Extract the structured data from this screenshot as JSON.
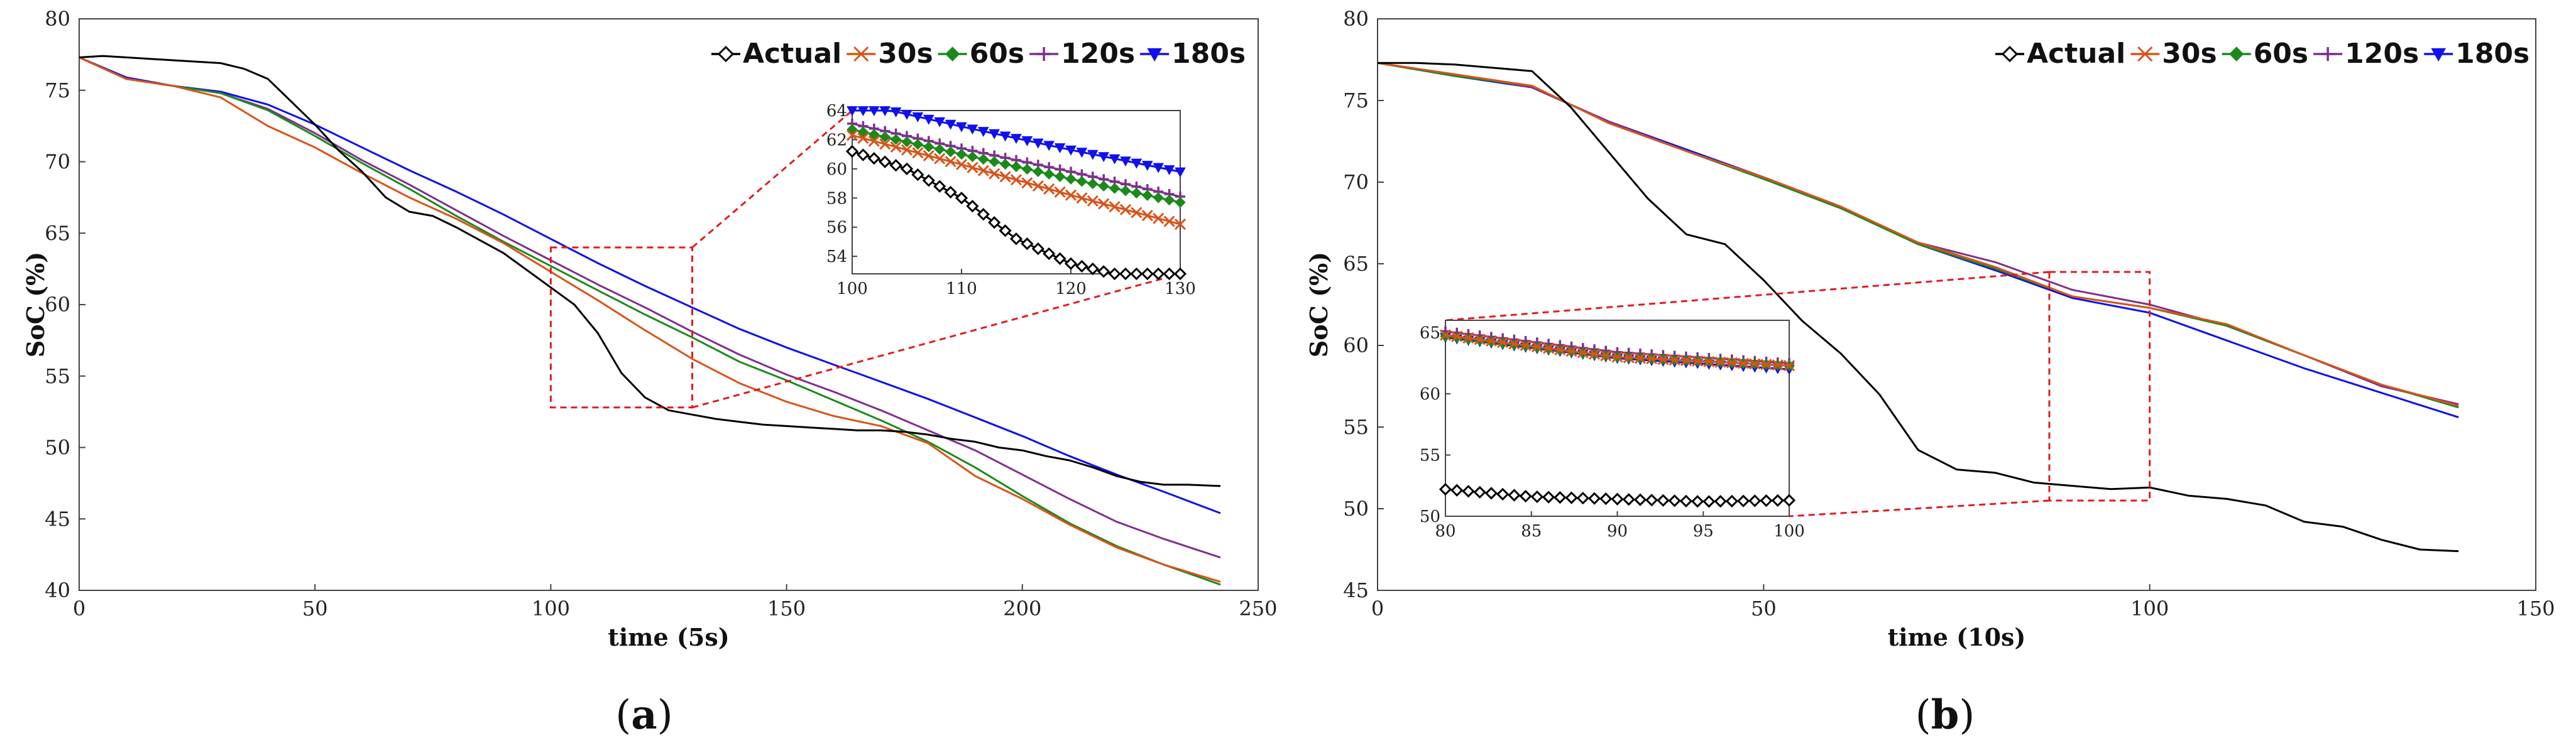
{
  "colors": {
    "Actual": "#000000",
    "30s": "#d95319",
    "60s": "#1a8a1a",
    "120s": "#7e2f8e",
    "180s": "#1010ee",
    "zoom_box": "#e31a1c"
  },
  "chart_data": [
    {
      "type": "line",
      "panel_label": "a",
      "xlabel": "time (5s)",
      "ylabel": "SoC (%)",
      "xlim": [
        0,
        250
      ],
      "ylim": [
        40,
        80
      ],
      "xticks": [
        0,
        50,
        100,
        150,
        200,
        250
      ],
      "yticks": [
        40,
        45,
        50,
        55,
        60,
        65,
        70,
        75,
        80
      ],
      "legend": [
        "Actual",
        "30s",
        "60s",
        "120s",
        "180s"
      ],
      "series": [
        {
          "name": "Actual",
          "x": [
            0,
            5,
            10,
            15,
            20,
            25,
            30,
            35,
            40,
            45,
            50,
            55,
            60,
            65,
            70,
            75,
            80,
            85,
            90,
            95,
            100,
            105,
            110,
            115,
            120,
            125,
            130,
            135,
            140,
            145,
            150,
            155,
            160,
            165,
            170,
            175,
            180,
            185,
            190,
            195,
            200,
            205,
            210,
            215,
            220,
            225,
            230,
            235,
            242
          ],
          "y": [
            77.3,
            77.4,
            77.3,
            77.2,
            77.1,
            77.0,
            76.9,
            76.5,
            75.8,
            74.2,
            72.6,
            70.8,
            69.3,
            67.5,
            66.5,
            66.2,
            65.4,
            64.5,
            63.6,
            62.4,
            61.2,
            60.0,
            58.0,
            55.2,
            53.5,
            52.6,
            52.3,
            52.0,
            51.8,
            51.6,
            51.5,
            51.4,
            51.3,
            51.2,
            51.2,
            51.1,
            50.9,
            50.6,
            50.4,
            50.0,
            49.8,
            49.4,
            49.1,
            48.6,
            48.0,
            47.6,
            47.4,
            47.4,
            47.3
          ]
        },
        {
          "name": "30s",
          "x": [
            0,
            10,
            20,
            30,
            40,
            50,
            60,
            70,
            80,
            90,
            100,
            110,
            120,
            130,
            140,
            150,
            160,
            170,
            180,
            190,
            200,
            210,
            220,
            230,
            242
          ],
          "y": [
            77.3,
            75.8,
            75.3,
            74.5,
            72.5,
            71.0,
            69.2,
            67.5,
            66.0,
            64.3,
            62.3,
            60.3,
            58.2,
            56.2,
            54.5,
            53.2,
            52.2,
            51.5,
            50.3,
            48.0,
            46.4,
            44.6,
            43.0,
            41.8,
            40.6
          ]
        },
        {
          "name": "60s",
          "x": [
            0,
            10,
            20,
            30,
            40,
            50,
            60,
            70,
            80,
            90,
            100,
            110,
            120,
            130,
            140,
            150,
            160,
            170,
            180,
            190,
            200,
            210,
            220,
            230,
            242
          ],
          "y": [
            77.3,
            75.8,
            75.3,
            74.8,
            73.6,
            71.8,
            69.9,
            68.1,
            66.2,
            64.4,
            62.7,
            61.0,
            59.3,
            57.7,
            56.0,
            54.7,
            53.3,
            51.9,
            50.4,
            48.6,
            46.6,
            44.7,
            43.1,
            41.8,
            40.4
          ]
        },
        {
          "name": "120s",
          "x": [
            0,
            10,
            20,
            30,
            40,
            50,
            60,
            70,
            80,
            90,
            100,
            110,
            120,
            130,
            140,
            150,
            160,
            170,
            180,
            190,
            200,
            210,
            220,
            230,
            242
          ],
          "y": [
            77.3,
            75.8,
            75.3,
            74.8,
            73.7,
            72.0,
            70.1,
            68.4,
            66.6,
            64.8,
            63.1,
            61.4,
            59.8,
            58.1,
            56.5,
            55.1,
            53.9,
            52.6,
            51.2,
            49.8,
            48.1,
            46.4,
            44.8,
            43.6,
            42.3
          ]
        },
        {
          "name": "180s",
          "x": [
            0,
            10,
            20,
            30,
            40,
            50,
            60,
            70,
            80,
            90,
            100,
            110,
            120,
            130,
            140,
            150,
            160,
            170,
            180,
            190,
            200,
            210,
            220,
            230,
            242
          ],
          "y": [
            77.3,
            75.9,
            75.3,
            74.9,
            74.0,
            72.6,
            71.0,
            69.4,
            67.9,
            66.3,
            64.6,
            62.9,
            61.3,
            59.8,
            58.3,
            57.0,
            55.8,
            54.6,
            53.4,
            52.1,
            50.8,
            49.4,
            48.1,
            46.9,
            45.4
          ]
        }
      ],
      "zoom": {
        "xlim": [
          100,
          130
        ],
        "ylim": [
          52.8,
          64
        ],
        "inset_xticks": [
          100,
          110,
          120,
          130
        ],
        "inset_yticks": [
          54,
          56,
          58,
          60,
          62,
          64
        ]
      }
    },
    {
      "type": "line",
      "panel_label": "b",
      "xlabel": "time (10s)",
      "ylabel": "SoC (%)",
      "xlim": [
        0,
        150
      ],
      "ylim": [
        45,
        80
      ],
      "xticks": [
        0,
        50,
        100,
        150
      ],
      "yticks": [
        45,
        50,
        55,
        60,
        65,
        70,
        75,
        80
      ],
      "legend": [
        "Actual",
        "30s",
        "60s",
        "120s",
        "180s"
      ],
      "series": [
        {
          "name": "Actual",
          "x": [
            0,
            5,
            10,
            15,
            20,
            25,
            30,
            35,
            40,
            45,
            50,
            55,
            60,
            65,
            70,
            75,
            80,
            85,
            90,
            95,
            100,
            105,
            110,
            115,
            120,
            125,
            130,
            135,
            140
          ],
          "y": [
            77.3,
            77.3,
            77.2,
            77.0,
            76.8,
            74.6,
            71.8,
            69.0,
            66.8,
            66.2,
            64.0,
            61.5,
            59.5,
            57.0,
            53.6,
            52.4,
            52.2,
            51.6,
            51.4,
            51.2,
            51.3,
            50.8,
            50.6,
            50.2,
            49.2,
            48.9,
            48.1,
            47.5,
            47.4
          ]
        },
        {
          "name": "30s",
          "x": [
            0,
            10,
            20,
            30,
            40,
            50,
            60,
            70,
            80,
            90,
            100,
            110,
            120,
            130,
            140
          ],
          "y": [
            77.3,
            76.6,
            75.9,
            73.6,
            71.9,
            70.3,
            68.5,
            66.3,
            64.8,
            63.0,
            62.3,
            61.3,
            59.4,
            57.6,
            56.3
          ]
        },
        {
          "name": "60s",
          "x": [
            0,
            10,
            20,
            30,
            40,
            50,
            60,
            70,
            80,
            90,
            100,
            110,
            120,
            130,
            140
          ],
          "y": [
            77.3,
            76.5,
            75.9,
            73.6,
            71.9,
            70.2,
            68.4,
            66.2,
            64.7,
            63.0,
            62.3,
            61.2,
            59.4,
            57.6,
            56.2
          ]
        },
        {
          "name": "120s",
          "x": [
            0,
            10,
            20,
            30,
            40,
            50,
            60,
            70,
            80,
            90,
            100,
            110,
            120,
            130,
            140
          ],
          "y": [
            77.3,
            76.6,
            75.8,
            73.7,
            71.9,
            70.2,
            68.4,
            66.3,
            65.1,
            63.4,
            62.5,
            61.2,
            59.4,
            57.5,
            56.4
          ]
        },
        {
          "name": "180s",
          "x": [
            0,
            10,
            20,
            30,
            40,
            50,
            60,
            70,
            80,
            90,
            100,
            110,
            120,
            130,
            140
          ],
          "y": [
            77.3,
            76.5,
            75.8,
            73.7,
            72.0,
            70.3,
            68.5,
            66.2,
            64.6,
            62.9,
            62.0,
            60.3,
            58.6,
            57.1,
            55.6
          ]
        }
      ],
      "zoom": {
        "xlim": [
          87,
          100
        ],
        "ylim": [
          50.5,
          64.5
        ],
        "inset_xlim": [
          80,
          100
        ],
        "inset_ylim": [
          50,
          66
        ],
        "inset_xticks": [
          80,
          85,
          90,
          95,
          100
        ],
        "inset_yticks": [
          50,
          55,
          60,
          65
        ]
      }
    }
  ]
}
